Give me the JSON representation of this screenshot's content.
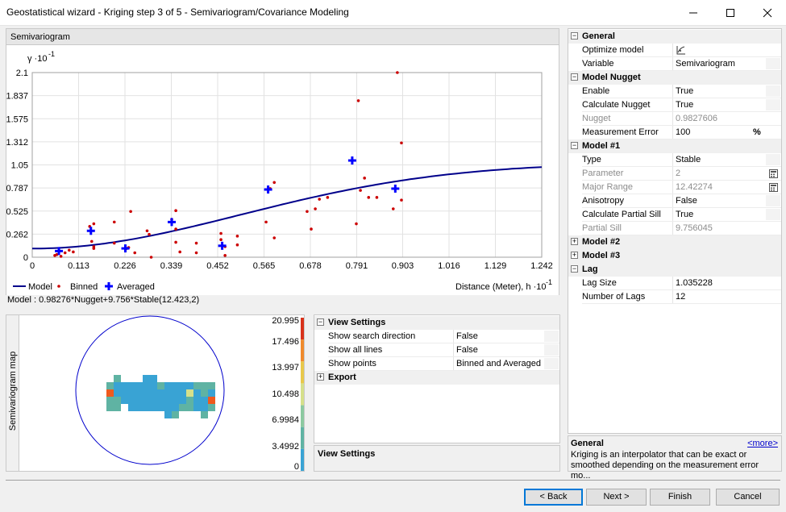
{
  "window": {
    "title": "Geostatistical wizard - Kriging step 3 of 5 - Semivariogram/Covariance Modeling",
    "minimize_icon": "minimize-icon",
    "maximize_icon": "maximize-icon",
    "close_icon": "close-icon"
  },
  "semivariogram": {
    "header": "Semivariogram",
    "model_equation": "Model : 0.98276*Nugget+9.756*Stable(12.423,2)"
  },
  "chart_data": {
    "type": "scatter",
    "title": "",
    "ylabel": "γ ·10",
    "ylabel_exp": "-1",
    "xlabel": "Distance (Meter), h ·10",
    "xlabel_exp": "-1",
    "xlim": [
      0,
      1.242
    ],
    "ylim": [
      0,
      2.1
    ],
    "x_ticks": [
      "0",
      "0.113",
      "0.226",
      "0.339",
      "0.452",
      "0.565",
      "0.678",
      "0.791",
      "0.903",
      "1.016",
      "1.129",
      "1.242"
    ],
    "y_ticks": [
      "0",
      "0.262",
      "0.525",
      "0.787",
      "1.05",
      "1.312",
      "1.575",
      "1.837",
      "2.1"
    ],
    "grid": true,
    "legend": [
      "Model",
      "Binned",
      "Averaged"
    ],
    "colors": {
      "model": "#00008b",
      "binned": "#cc0000",
      "averaged": "#0000ff"
    },
    "series": [
      {
        "name": "Binned",
        "points": [
          [
            0.055,
            0.02
          ],
          [
            0.06,
            0.03
          ],
          [
            0.07,
            0.01
          ],
          [
            0.08,
            0.05
          ],
          [
            0.09,
            0.08
          ],
          [
            0.1,
            0.06
          ],
          [
            0.14,
            0.35
          ],
          [
            0.145,
            0.18
          ],
          [
            0.15,
            0.1
          ],
          [
            0.15,
            0.38
          ],
          [
            0.15,
            0.12
          ],
          [
            0.2,
            0.4
          ],
          [
            0.2,
            0.16
          ],
          [
            0.23,
            0.1
          ],
          [
            0.235,
            0.11
          ],
          [
            0.24,
            0.52
          ],
          [
            0.25,
            0.05
          ],
          [
            0.28,
            0.3
          ],
          [
            0.285,
            0.26
          ],
          [
            0.29,
            0.0
          ],
          [
            0.34,
            0.43
          ],
          [
            0.35,
            0.53
          ],
          [
            0.35,
            0.32
          ],
          [
            0.35,
            0.17
          ],
          [
            0.36,
            0.06
          ],
          [
            0.4,
            0.16
          ],
          [
            0.4,
            0.05
          ],
          [
            0.46,
            0.2
          ],
          [
            0.46,
            0.27
          ],
          [
            0.47,
            0.02
          ],
          [
            0.47,
            0.12
          ],
          [
            0.5,
            0.24
          ],
          [
            0.5,
            0.14
          ],
          [
            0.57,
            0.4
          ],
          [
            0.58,
            0.78
          ],
          [
            0.59,
            0.85
          ],
          [
            0.59,
            0.22
          ],
          [
            0.67,
            0.52
          ],
          [
            0.68,
            0.32
          ],
          [
            0.69,
            0.55
          ],
          [
            0.7,
            0.66
          ],
          [
            0.72,
            0.68
          ],
          [
            0.79,
            0.38
          ],
          [
            0.795,
            1.78
          ],
          [
            0.8,
            0.76
          ],
          [
            0.82,
            0.68
          ],
          [
            0.81,
            0.9
          ],
          [
            0.84,
            0.68
          ],
          [
            0.88,
            0.55
          ],
          [
            0.89,
            2.1
          ],
          [
            0.9,
            1.3
          ],
          [
            0.9,
            0.65
          ]
        ]
      },
      {
        "name": "Averaged",
        "points": [
          [
            0.065,
            0.07
          ],
          [
            0.143,
            0.3
          ],
          [
            0.227,
            0.1
          ],
          [
            0.34,
            0.4
          ],
          [
            0.463,
            0.13
          ],
          [
            0.575,
            0.77
          ],
          [
            0.78,
            1.1
          ],
          [
            0.885,
            0.78
          ]
        ]
      },
      {
        "name": "Model",
        "nugget": 0.098276,
        "partial_sill": 0.9756,
        "major_range": 1.242274
      }
    ]
  },
  "map": {
    "side_label": "Semivariogram map",
    "scale_values": [
      "20.995",
      "17.496",
      "13.997",
      "10.498",
      "6.9984",
      "3.4992",
      "0"
    ]
  },
  "view_settings": {
    "category": "View Settings",
    "rows": [
      {
        "name": "Show search direction",
        "value": "False"
      },
      {
        "name": "Show all lines",
        "value": "False"
      },
      {
        "name": "Show points",
        "value": "Binned and Averaged"
      }
    ],
    "export": "Export",
    "description_title": "View Settings"
  },
  "properties": {
    "general": {
      "label": "General",
      "rows": [
        {
          "name": "Optimize model",
          "value": ""
        },
        {
          "name": "Variable",
          "value": "Semivariogram"
        }
      ]
    },
    "model_nugget": {
      "label": "Model Nugget",
      "rows": [
        {
          "name": "Enable",
          "value": "True"
        },
        {
          "name": "Calculate Nugget",
          "value": "True"
        },
        {
          "name": "Nugget",
          "value": "0.9827606"
        },
        {
          "name": "Measurement Error",
          "value": "100",
          "unit": "%"
        }
      ]
    },
    "model1": {
      "label": "Model #1",
      "rows": [
        {
          "name": "Type",
          "value": "Stable"
        },
        {
          "name": "Parameter",
          "value": "2"
        },
        {
          "name": "Major Range",
          "value": "12.42274"
        },
        {
          "name": "Anisotropy",
          "value": "False"
        },
        {
          "name": "Calculate Partial Sill",
          "value": "True"
        },
        {
          "name": "Partial Sill",
          "value": "9.756045"
        }
      ]
    },
    "model2": {
      "label": "Model #2"
    },
    "model3": {
      "label": "Model #3"
    },
    "lag": {
      "label": "Lag",
      "rows": [
        {
          "name": "Lag Size",
          "value": "1.035228"
        },
        {
          "name": "Number of Lags",
          "value": "12"
        }
      ]
    },
    "description": {
      "title": "General",
      "more": "<more>",
      "text": "Kriging is an interpolator that can be exact or smoothed depending on the measurement error mo..."
    }
  },
  "buttons": {
    "back": "< Back",
    "next": "Next >",
    "finish": "Finish",
    "cancel": "Cancel"
  }
}
